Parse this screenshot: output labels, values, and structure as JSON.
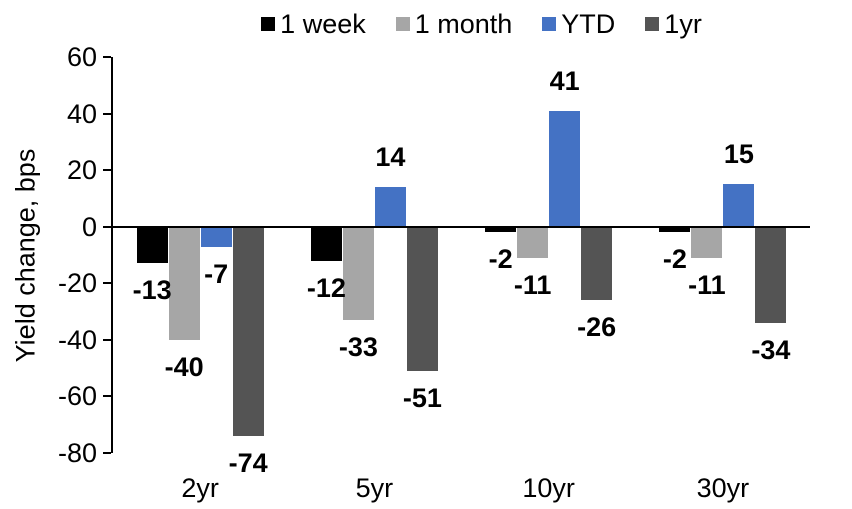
{
  "chart_data": {
    "type": "bar",
    "title": "",
    "ylabel": "Yield change, bps",
    "xlabel": "",
    "categories": [
      "2yr",
      "5yr",
      "10yr",
      "30yr"
    ],
    "series": [
      {
        "name": "1 week",
        "color": "#000000",
        "values": [
          -13,
          -12,
          -2,
          -2
        ]
      },
      {
        "name": "1 month",
        "color": "#A6A6A6",
        "values": [
          -40,
          -33,
          -11,
          -11
        ]
      },
      {
        "name": "YTD",
        "color": "#4472C4",
        "values": [
          -7,
          14,
          41,
          15
        ]
      },
      {
        "name": "1yr",
        "color": "#545454",
        "values": [
          -74,
          -51,
          -26,
          -34
        ]
      }
    ],
    "ylim": [
      -80,
      60
    ],
    "ytick_step": 20,
    "yticks": [
      60,
      40,
      20,
      0,
      -20,
      -40,
      -60,
      -80
    ],
    "grid": false,
    "legend_position": "top",
    "data_labels": true,
    "axis_color": "#000000",
    "background_color": "#FFFFFF"
  }
}
